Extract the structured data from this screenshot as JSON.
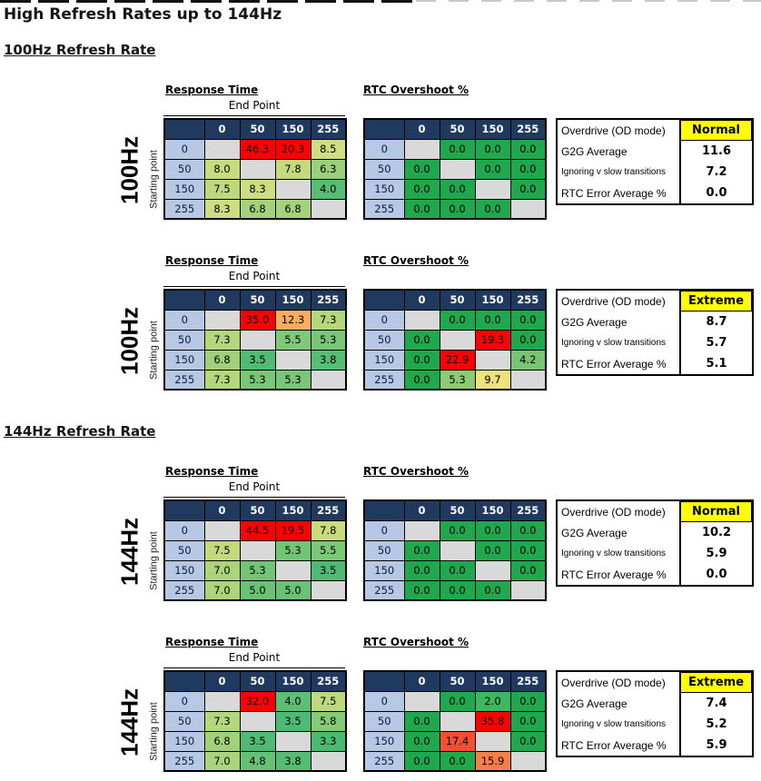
{
  "page": {
    "title": "High Refresh Rates up to 144Hz"
  },
  "sections": [
    {
      "heading": "100Hz Refresh Rate"
    },
    {
      "heading": "144Hz Refresh Rate"
    }
  ],
  "labels": {
    "overdrive": "Overdrive (OD mode)",
    "g2g_average": "G2G Average",
    "ignoring": "Ignoring v slow transitions",
    "rtc_error": "RTC Error Average %"
  },
  "colors": {
    "header_bg": "#1F3A5E",
    "row_header_bg": "#B6C8E4",
    "diagonal_bg": "#D9D9D9",
    "zero_green": "#1FA84D",
    "red": "#FF0000",
    "highlight_yellow": "#FFFF00"
  },
  "chart_data": [
    {
      "type": "heatmap",
      "refresh_rate": "100Hz",
      "od_mode": "Normal",
      "categories_x": [
        "0",
        "50",
        "150",
        "255"
      ],
      "categories_y": [
        "0",
        "50",
        "150",
        "255"
      ],
      "response_time": {
        "title": "Response Time",
        "xlabel": "End Point",
        "ylabel": "Starting point",
        "values": [
          [
            null,
            "46.3",
            "20.3",
            "8.5"
          ],
          [
            "8.0",
            null,
            "7.8",
            "6.3"
          ],
          [
            "7.5",
            "8.3",
            null,
            "4.0"
          ],
          [
            "8.3",
            "6.8",
            "6.8",
            null
          ]
        ],
        "colors": [
          [
            "#D9D9D9",
            "#FF0000",
            "#FF0000",
            "#CEDE80"
          ],
          [
            "#C7DC7E",
            "#D9D9D9",
            "#C3DB7D",
            "#9AD07B"
          ],
          [
            "#BDD97C",
            "#CCDE7F",
            "#D9D9D9",
            "#58BD74"
          ],
          [
            "#CCDE7F",
            "#A4D27B",
            "#A4D27B",
            "#D9D9D9"
          ]
        ]
      },
      "rtc_overshoot": {
        "title": "RTC Overshoot %",
        "values": [
          [
            null,
            "0.0",
            "0.0",
            "0.0"
          ],
          [
            "0.0",
            null,
            "0.0",
            "0.0"
          ],
          [
            "0.0",
            "0.0",
            null,
            "0.0"
          ],
          [
            "0.0",
            "0.0",
            "0.0",
            null
          ]
        ],
        "colors": [
          [
            "#D9D9D9",
            "#1FA84D",
            "#1FA84D",
            "#1FA84D"
          ],
          [
            "#1FA84D",
            "#D9D9D9",
            "#1FA84D",
            "#1FA84D"
          ],
          [
            "#1FA84D",
            "#1FA84D",
            "#D9D9D9",
            "#1FA84D"
          ],
          [
            "#1FA84D",
            "#1FA84D",
            "#1FA84D",
            "#D9D9D9"
          ]
        ]
      },
      "summary": {
        "g2g_average": "11.6",
        "ignoring_v_slow": "7.2",
        "rtc_error_avg": "0.0"
      }
    },
    {
      "type": "heatmap",
      "refresh_rate": "100Hz",
      "od_mode": "Extreme",
      "categories_x": [
        "0",
        "50",
        "150",
        "255"
      ],
      "categories_y": [
        "0",
        "50",
        "150",
        "255"
      ],
      "response_time": {
        "title": "Response Time",
        "xlabel": "End Point",
        "ylabel": "Starting point",
        "values": [
          [
            null,
            "35.0",
            "12.3",
            "7.3"
          ],
          [
            "7.3",
            null,
            "5.5",
            "5.3"
          ],
          [
            "6.8",
            "3.5",
            null,
            "3.8"
          ],
          [
            "7.3",
            "5.3",
            "5.3",
            null
          ]
        ],
        "colors": [
          [
            "#D9D9D9",
            "#FF0000",
            "#FCAC5C",
            "#B4D77B"
          ],
          [
            "#B4D77B",
            "#D9D9D9",
            "#80C977",
            "#79C776"
          ],
          [
            "#A0D17A",
            "#50BB73",
            "#D9D9D9",
            "#56BD74"
          ],
          [
            "#B4D77B",
            "#79C776",
            "#79C776",
            "#D9D9D9"
          ]
        ]
      },
      "rtc_overshoot": {
        "title": "RTC Overshoot %",
        "values": [
          [
            null,
            "0.0",
            "0.0",
            "0.0"
          ],
          [
            "0.0",
            null,
            "19.3",
            "0.0"
          ],
          [
            "0.0",
            "22.9",
            null,
            "4.2"
          ],
          [
            "0.0",
            "5.3",
            "9.7",
            null
          ]
        ],
        "colors": [
          [
            "#D9D9D9",
            "#1FA84D",
            "#1FA84D",
            "#1FA84D"
          ],
          [
            "#1FA84D",
            "#D9D9D9",
            "#FF0000",
            "#1FA84D"
          ],
          [
            "#1FA84D",
            "#FF0000",
            "#D9D9D9",
            "#77C573"
          ],
          [
            "#1FA84D",
            "#8CCB74",
            "#EFE17E",
            "#D9D9D9"
          ]
        ]
      },
      "summary": {
        "g2g_average": "8.7",
        "ignoring_v_slow": "5.7",
        "rtc_error_avg": "5.1"
      }
    },
    {
      "type": "heatmap",
      "refresh_rate": "144Hz",
      "od_mode": "Normal",
      "categories_x": [
        "0",
        "50",
        "150",
        "255"
      ],
      "categories_y": [
        "0",
        "50",
        "150",
        "255"
      ],
      "response_time": {
        "title": "Response Time",
        "xlabel": "End Point",
        "ylabel": "Starting point",
        "values": [
          [
            null,
            "44.5",
            "19.5",
            "7.8"
          ],
          [
            "7.5",
            null,
            "5.3",
            "5.5"
          ],
          [
            "7.0",
            "5.3",
            null,
            "3.5"
          ],
          [
            "7.0",
            "5.0",
            "5.0",
            null
          ]
        ],
        "colors": [
          [
            "#D9D9D9",
            "#FF0000",
            "#FF0000",
            "#C8DC7E"
          ],
          [
            "#C0DA7D",
            "#D9D9D9",
            "#73C576",
            "#7BC877"
          ],
          [
            "#ADD47B",
            "#73C576",
            "#D9D9D9",
            "#4DBB73"
          ],
          [
            "#ADD47B",
            "#69C275",
            "#69C275",
            "#D9D9D9"
          ]
        ]
      },
      "rtc_overshoot": {
        "title": "RTC Overshoot %",
        "values": [
          [
            null,
            "0.0",
            "0.0",
            "0.0"
          ],
          [
            "0.0",
            null,
            "0.0",
            "0.0"
          ],
          [
            "0.0",
            "0.0",
            null,
            "0.0"
          ],
          [
            "0.0",
            "0.0",
            "0.0",
            null
          ]
        ],
        "colors": [
          [
            "#D9D9D9",
            "#1FA84D",
            "#1FA84D",
            "#1FA84D"
          ],
          [
            "#1FA84D",
            "#D9D9D9",
            "#1FA84D",
            "#1FA84D"
          ],
          [
            "#1FA84D",
            "#1FA84D",
            "#D9D9D9",
            "#1FA84D"
          ],
          [
            "#1FA84D",
            "#1FA84D",
            "#1FA84D",
            "#D9D9D9"
          ]
        ]
      },
      "summary": {
        "g2g_average": "10.2",
        "ignoring_v_slow": "5.9",
        "rtc_error_avg": "0.0"
      }
    },
    {
      "type": "heatmap",
      "refresh_rate": "144Hz",
      "od_mode": "Extreme",
      "categories_x": [
        "0",
        "50",
        "150",
        "255"
      ],
      "categories_y": [
        "0",
        "50",
        "150",
        "255"
      ],
      "response_time": {
        "title": "Response Time",
        "xlabel": "End Point",
        "ylabel": "Starting point",
        "values": [
          [
            null,
            "32.0",
            "4.0",
            "7.5"
          ],
          [
            "7.3",
            null,
            "3.5",
            "5.8"
          ],
          [
            "6.8",
            "3.5",
            null,
            "3.3"
          ],
          [
            "7.0",
            "4.8",
            "3.8",
            null
          ]
        ],
        "colors": [
          [
            "#D9D9D9",
            "#FF0000",
            "#5DBF74",
            "#BCD97C"
          ],
          [
            "#B3D77B",
            "#D9D9D9",
            "#4DBB73",
            "#84CA77"
          ],
          [
            "#A2D17A",
            "#4DBB73",
            "#D9D9D9",
            "#48BA72"
          ],
          [
            "#ABD37B",
            "#66C175",
            "#54BC73",
            "#D9D9D9"
          ]
        ]
      },
      "rtc_overshoot": {
        "title": "RTC Overshoot %",
        "values": [
          [
            null,
            "0.0",
            "2.0",
            "0.0"
          ],
          [
            "0.0",
            null,
            "35.8",
            "0.0"
          ],
          [
            "0.0",
            "17.4",
            null,
            "0.0"
          ],
          [
            "0.0",
            "0.0",
            "15.9",
            null
          ]
        ],
        "colors": [
          [
            "#D9D9D9",
            "#1FA84D",
            "#3CB95F",
            "#1FA84D"
          ],
          [
            "#1FA84D",
            "#D9D9D9",
            "#FF0000",
            "#1FA84D"
          ],
          [
            "#1FA84D",
            "#F94E31",
            "#D9D9D9",
            "#1FA84D"
          ],
          [
            "#1FA84D",
            "#1FA84D",
            "#F87E46",
            "#D9D9D9"
          ]
        ]
      },
      "summary": {
        "g2g_average": "7.4",
        "ignoring_v_slow": "5.2",
        "rtc_error_avg": "5.9"
      }
    }
  ]
}
